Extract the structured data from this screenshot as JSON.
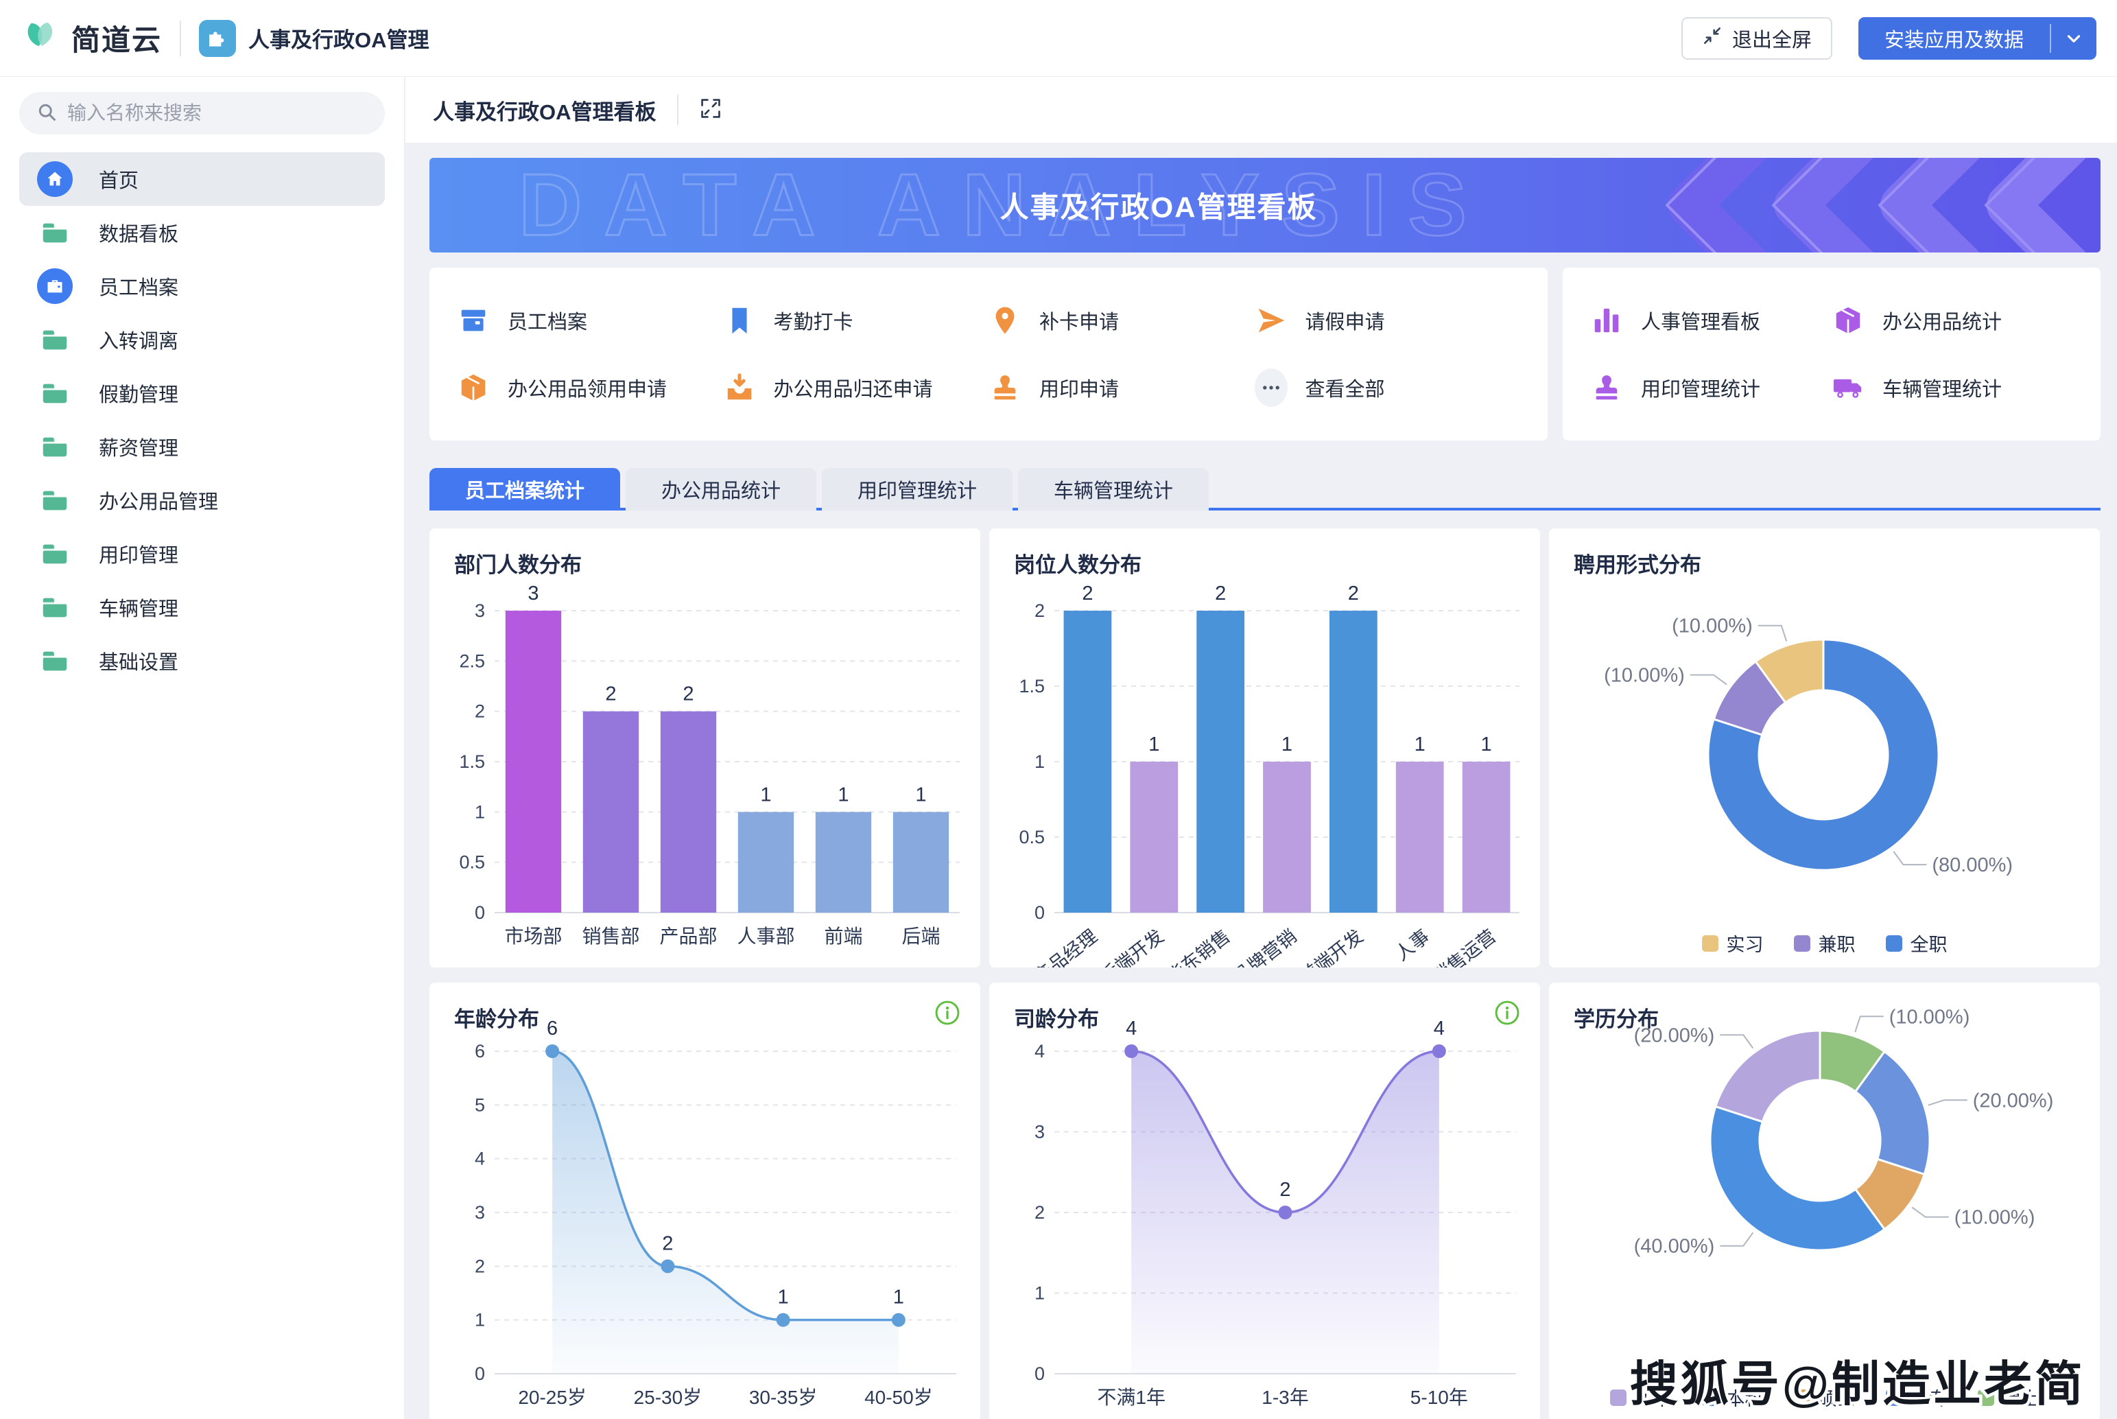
{
  "header": {
    "logo_text": "简道云",
    "app_title": "人事及行政OA管理",
    "exit_fullscreen_label": "退出全屏",
    "install_label": "安装应用及数据"
  },
  "sidebar": {
    "search_placeholder": "输入名称来搜索",
    "items": [
      {
        "label": "首页",
        "icon": "home-icon",
        "active": true
      },
      {
        "label": "数据看板",
        "icon": "folder-icon",
        "active": false
      },
      {
        "label": "员工档案",
        "icon": "card-icon",
        "active": false
      },
      {
        "label": "入转调离",
        "icon": "folder-icon",
        "active": false
      },
      {
        "label": "假勤管理",
        "icon": "folder-icon",
        "active": false
      },
      {
        "label": "薪资管理",
        "icon": "folder-icon",
        "active": false
      },
      {
        "label": "办公用品管理",
        "icon": "folder-icon",
        "active": false
      },
      {
        "label": "用印管理",
        "icon": "folder-icon",
        "active": false
      },
      {
        "label": "车辆管理",
        "icon": "folder-icon",
        "active": false
      },
      {
        "label": "基础设置",
        "icon": "folder-icon",
        "active": false
      }
    ]
  },
  "page": {
    "title": "人事及行政OA管理看板",
    "banner_title": "人事及行政OA管理看板",
    "banner_watermark": "DATA ANALYSIS"
  },
  "quick_links": {
    "left": [
      {
        "label": "员工档案",
        "icon": "archive-icon",
        "color": "#4382e6"
      },
      {
        "label": "考勤打卡",
        "icon": "bookmark-icon",
        "color": "#4382e6"
      },
      {
        "label": "补卡申请",
        "icon": "pin-icon",
        "color": "#f0923f"
      },
      {
        "label": "请假申请",
        "icon": "send-icon",
        "color": "#f0923f"
      },
      {
        "label": "办公用品领用申请",
        "icon": "box-icon",
        "color": "#f0923f"
      },
      {
        "label": "办公用品归还申请",
        "icon": "inbox-icon",
        "color": "#f0923f"
      },
      {
        "label": "用印申请",
        "icon": "stamp-icon",
        "color": "#f0923f"
      },
      {
        "label": "查看全部",
        "icon": "ellipsis-icon",
        "color": "#4a5568"
      }
    ],
    "right": [
      {
        "label": "人事管理看板",
        "icon": "barchart-icon",
        "color": "#ab5ce6"
      },
      {
        "label": "办公用品统计",
        "icon": "box-icon",
        "color": "#ab5ce6"
      },
      {
        "label": "用印管理统计",
        "icon": "stamp-icon",
        "color": "#ab5ce6"
      },
      {
        "label": "车辆管理统计",
        "icon": "truck-icon",
        "color": "#ab5ce6"
      }
    ]
  },
  "tabs": [
    {
      "label": "员工档案统计",
      "active": true
    },
    {
      "label": "办公用品统计",
      "active": false
    },
    {
      "label": "用印管理统计",
      "active": false
    },
    {
      "label": "车辆管理统计",
      "active": false
    }
  ],
  "watermark_text": "搜狐号@制造业老简",
  "chart_data": [
    {
      "type": "bar",
      "title": "部门人数分布",
      "categories": [
        "市场部",
        "销售部",
        "产品部",
        "人事部",
        "前端",
        "后端"
      ],
      "values": [
        3,
        2,
        2,
        1,
        1,
        1
      ],
      "bar_colors": [
        "#b35ade",
        "#9577dc",
        "#9577dc",
        "#87a9dd",
        "#87a9dd",
        "#87a9dd"
      ],
      "ylim": [
        0,
        3
      ],
      "yticks": [
        0,
        0.5,
        1,
        1.5,
        2,
        2.5,
        3
      ],
      "grid": true
    },
    {
      "type": "bar",
      "title": "岗位人数分布",
      "categories": [
        "产品经理",
        "后端开发",
        "华东销售",
        "品牌营销",
        "前端开发",
        "人事",
        "销售运营"
      ],
      "values": [
        2,
        1,
        2,
        1,
        2,
        1,
        1
      ],
      "bar_colors": [
        "#4b93d9",
        "#bb9edf",
        "#4b93d9",
        "#bb9edf",
        "#4b93d9",
        "#bb9edf",
        "#bb9edf"
      ],
      "ylim": [
        0,
        2
      ],
      "yticks": [
        0,
        0.5,
        1,
        1.5,
        2
      ],
      "rotate_labels": true,
      "grid": true
    },
    {
      "type": "donut",
      "title": "聘用形式分布",
      "slices": [
        {
          "label": "全职",
          "value": 80,
          "pct_label": "(80.00%)",
          "color": "#4a86dc"
        },
        {
          "label": "兼职",
          "value": 10,
          "pct_label": "(10.00%)",
          "color": "#9486cf"
        },
        {
          "label": "实习",
          "value": 10,
          "pct_label": "(10.00%)",
          "color": "#e9c47f"
        }
      ],
      "legend": [
        {
          "label": "实习",
          "color": "#e9c47f"
        },
        {
          "label": "兼职",
          "color": "#9486cf"
        },
        {
          "label": "全职",
          "color": "#4a86dc"
        }
      ],
      "legend_position": "bottom"
    },
    {
      "type": "area",
      "title": "年龄分布",
      "categories": [
        "20-25岁",
        "25-30岁",
        "30-35岁",
        "40-50岁"
      ],
      "values": [
        6,
        2,
        1,
        1
      ],
      "color": "#5f9ed9",
      "ylim": [
        0,
        6
      ],
      "yticks": [
        0,
        1,
        2,
        3,
        4,
        5,
        6
      ],
      "info_icon": true,
      "grid": true
    },
    {
      "type": "area",
      "title": "司龄分布",
      "categories": [
        "不满1年",
        "1-3年",
        "5-10年"
      ],
      "values": [
        4,
        2,
        4
      ],
      "color": "#8478dc",
      "ylim": [
        0,
        4
      ],
      "yticks": [
        0,
        1,
        2,
        3,
        4
      ],
      "info_icon": true,
      "grid": true
    },
    {
      "type": "donut",
      "title": "学历分布",
      "slices": [
        {
          "label": "博士",
          "value": 10,
          "pct_label": "(10.00%)",
          "color": "#90c27e"
        },
        {
          "label": "大专",
          "value": 20,
          "pct_label": "(20.00%)",
          "color": "#6b92dd"
        },
        {
          "label": "硕士",
          "value": 10,
          "pct_label": "(10.00%)",
          "color": "#dfa763"
        },
        {
          "label": "本科",
          "value": 40,
          "pct_label": "(40.00%)",
          "color": "#4a8fe0"
        },
        {
          "label": "初中",
          "value": 20,
          "pct_label": "(20.00%)",
          "color": "#b4a5dd"
        }
      ],
      "legend": [
        {
          "label": "初中",
          "color": "#b4a5dd"
        },
        {
          "label": "本科",
          "color": "#4a8fe0"
        },
        {
          "label": "硕士",
          "color": "#dfa763"
        },
        {
          "label": "大专",
          "color": "#6b92dd"
        },
        {
          "label": "博士",
          "color": "#90c27e"
        }
      ],
      "legend_position": "bottom"
    }
  ]
}
